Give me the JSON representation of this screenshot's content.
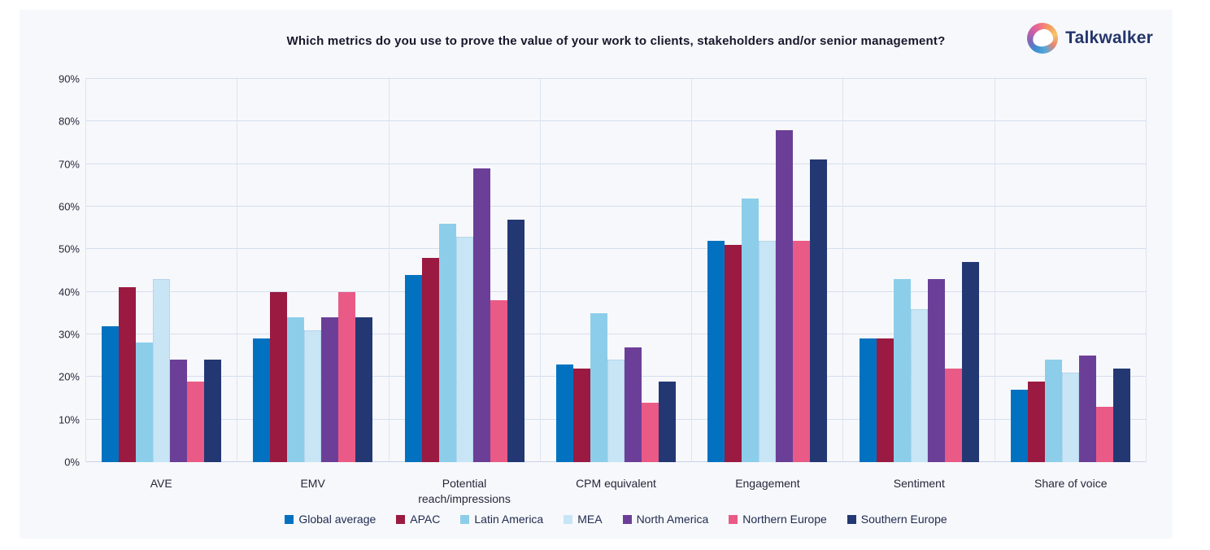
{
  "header": {
    "title": "Which metrics do you use to prove the value of your work to clients, stakeholders and/or senior management?",
    "brand": "Talkwalker"
  },
  "chart_data": {
    "type": "bar",
    "title": "Which metrics do you use to prove the value of your work to clients, stakeholders and/or senior management?",
    "categories": [
      "AVE",
      "EMV",
      "Potential reach/impressions",
      "CPM equivalent",
      "Engagement",
      "Sentiment",
      "Share of voice"
    ],
    "series": [
      {
        "name": "Global average",
        "color": "#0272c0",
        "values": [
          32,
          29,
          44,
          23,
          52,
          29,
          17
        ]
      },
      {
        "name": "APAC",
        "color": "#9a1a41",
        "values": [
          41,
          40,
          48,
          22,
          51,
          29,
          19
        ]
      },
      {
        "name": "Latin America",
        "color": "#8ccee9",
        "values": [
          28,
          34,
          56,
          35,
          62,
          43,
          24
        ]
      },
      {
        "name": "MEA",
        "color": "#c7e5f5",
        "border_color": "#a3c7e3",
        "values": [
          43,
          31,
          53,
          24,
          52,
          36,
          21
        ]
      },
      {
        "name": "North America",
        "color": "#6b3f97",
        "values": [
          24,
          34,
          69,
          27,
          78,
          43,
          25
        ]
      },
      {
        "name": "Northern Europe",
        "color": "#ea5a86",
        "values": [
          19,
          40,
          38,
          14,
          52,
          22,
          13
        ]
      },
      {
        "name": "Southern Europe",
        "color": "#233873",
        "values": [
          24,
          34,
          57,
          19,
          71,
          47,
          22
        ]
      }
    ],
    "y_axis": {
      "min": 0,
      "max": 90,
      "step": 10,
      "suffix": "%"
    },
    "xlabel": "",
    "ylabel": "",
    "grid": true,
    "legend_position": "bottom",
    "colors": {
      "panel_background": "#f7f8fb",
      "gridline": "#d5deef",
      "axis_line": "#c8d3e8",
      "title_text": "#17172b",
      "tick_text": "#26263a",
      "legend_text": "#1e2a4f",
      "brand_text": "#24356b"
    }
  }
}
